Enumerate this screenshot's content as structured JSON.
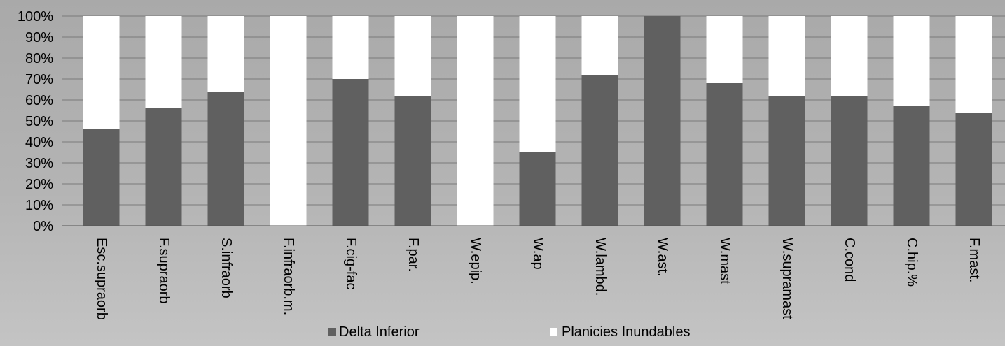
{
  "chart_data": {
    "type": "bar",
    "stacked": "percent",
    "categories": [
      "Esc.supraorb",
      "F.supraorb",
      "S.infraorb",
      "F.infraorb.m.",
      "F.cig-fac",
      "F.par.",
      "W.epip.",
      "W.ap",
      "W.lambd.",
      "W.ast.",
      "W.mast",
      "W.supramast",
      "C.cond",
      "C.hip.%",
      "F.mast."
    ],
    "series": [
      {
        "name": "Delta Inferior",
        "color": "#606060",
        "values": [
          46,
          56,
          64,
          0,
          70,
          62,
          0,
          35,
          72,
          100,
          68,
          62,
          62,
          57,
          54
        ]
      },
      {
        "name": "Planicies Inundables",
        "color": "#ffffff",
        "values": [
          54,
          44,
          36,
          100,
          30,
          38,
          100,
          65,
          28,
          0,
          32,
          38,
          38,
          43,
          46
        ]
      }
    ],
    "y_ticks": [
      "0%",
      "10%",
      "20%",
      "30%",
      "40%",
      "50%",
      "60%",
      "70%",
      "80%",
      "90%",
      "100%"
    ],
    "ylim": [
      0,
      100
    ],
    "grid": true,
    "legend_position": "bottom"
  }
}
